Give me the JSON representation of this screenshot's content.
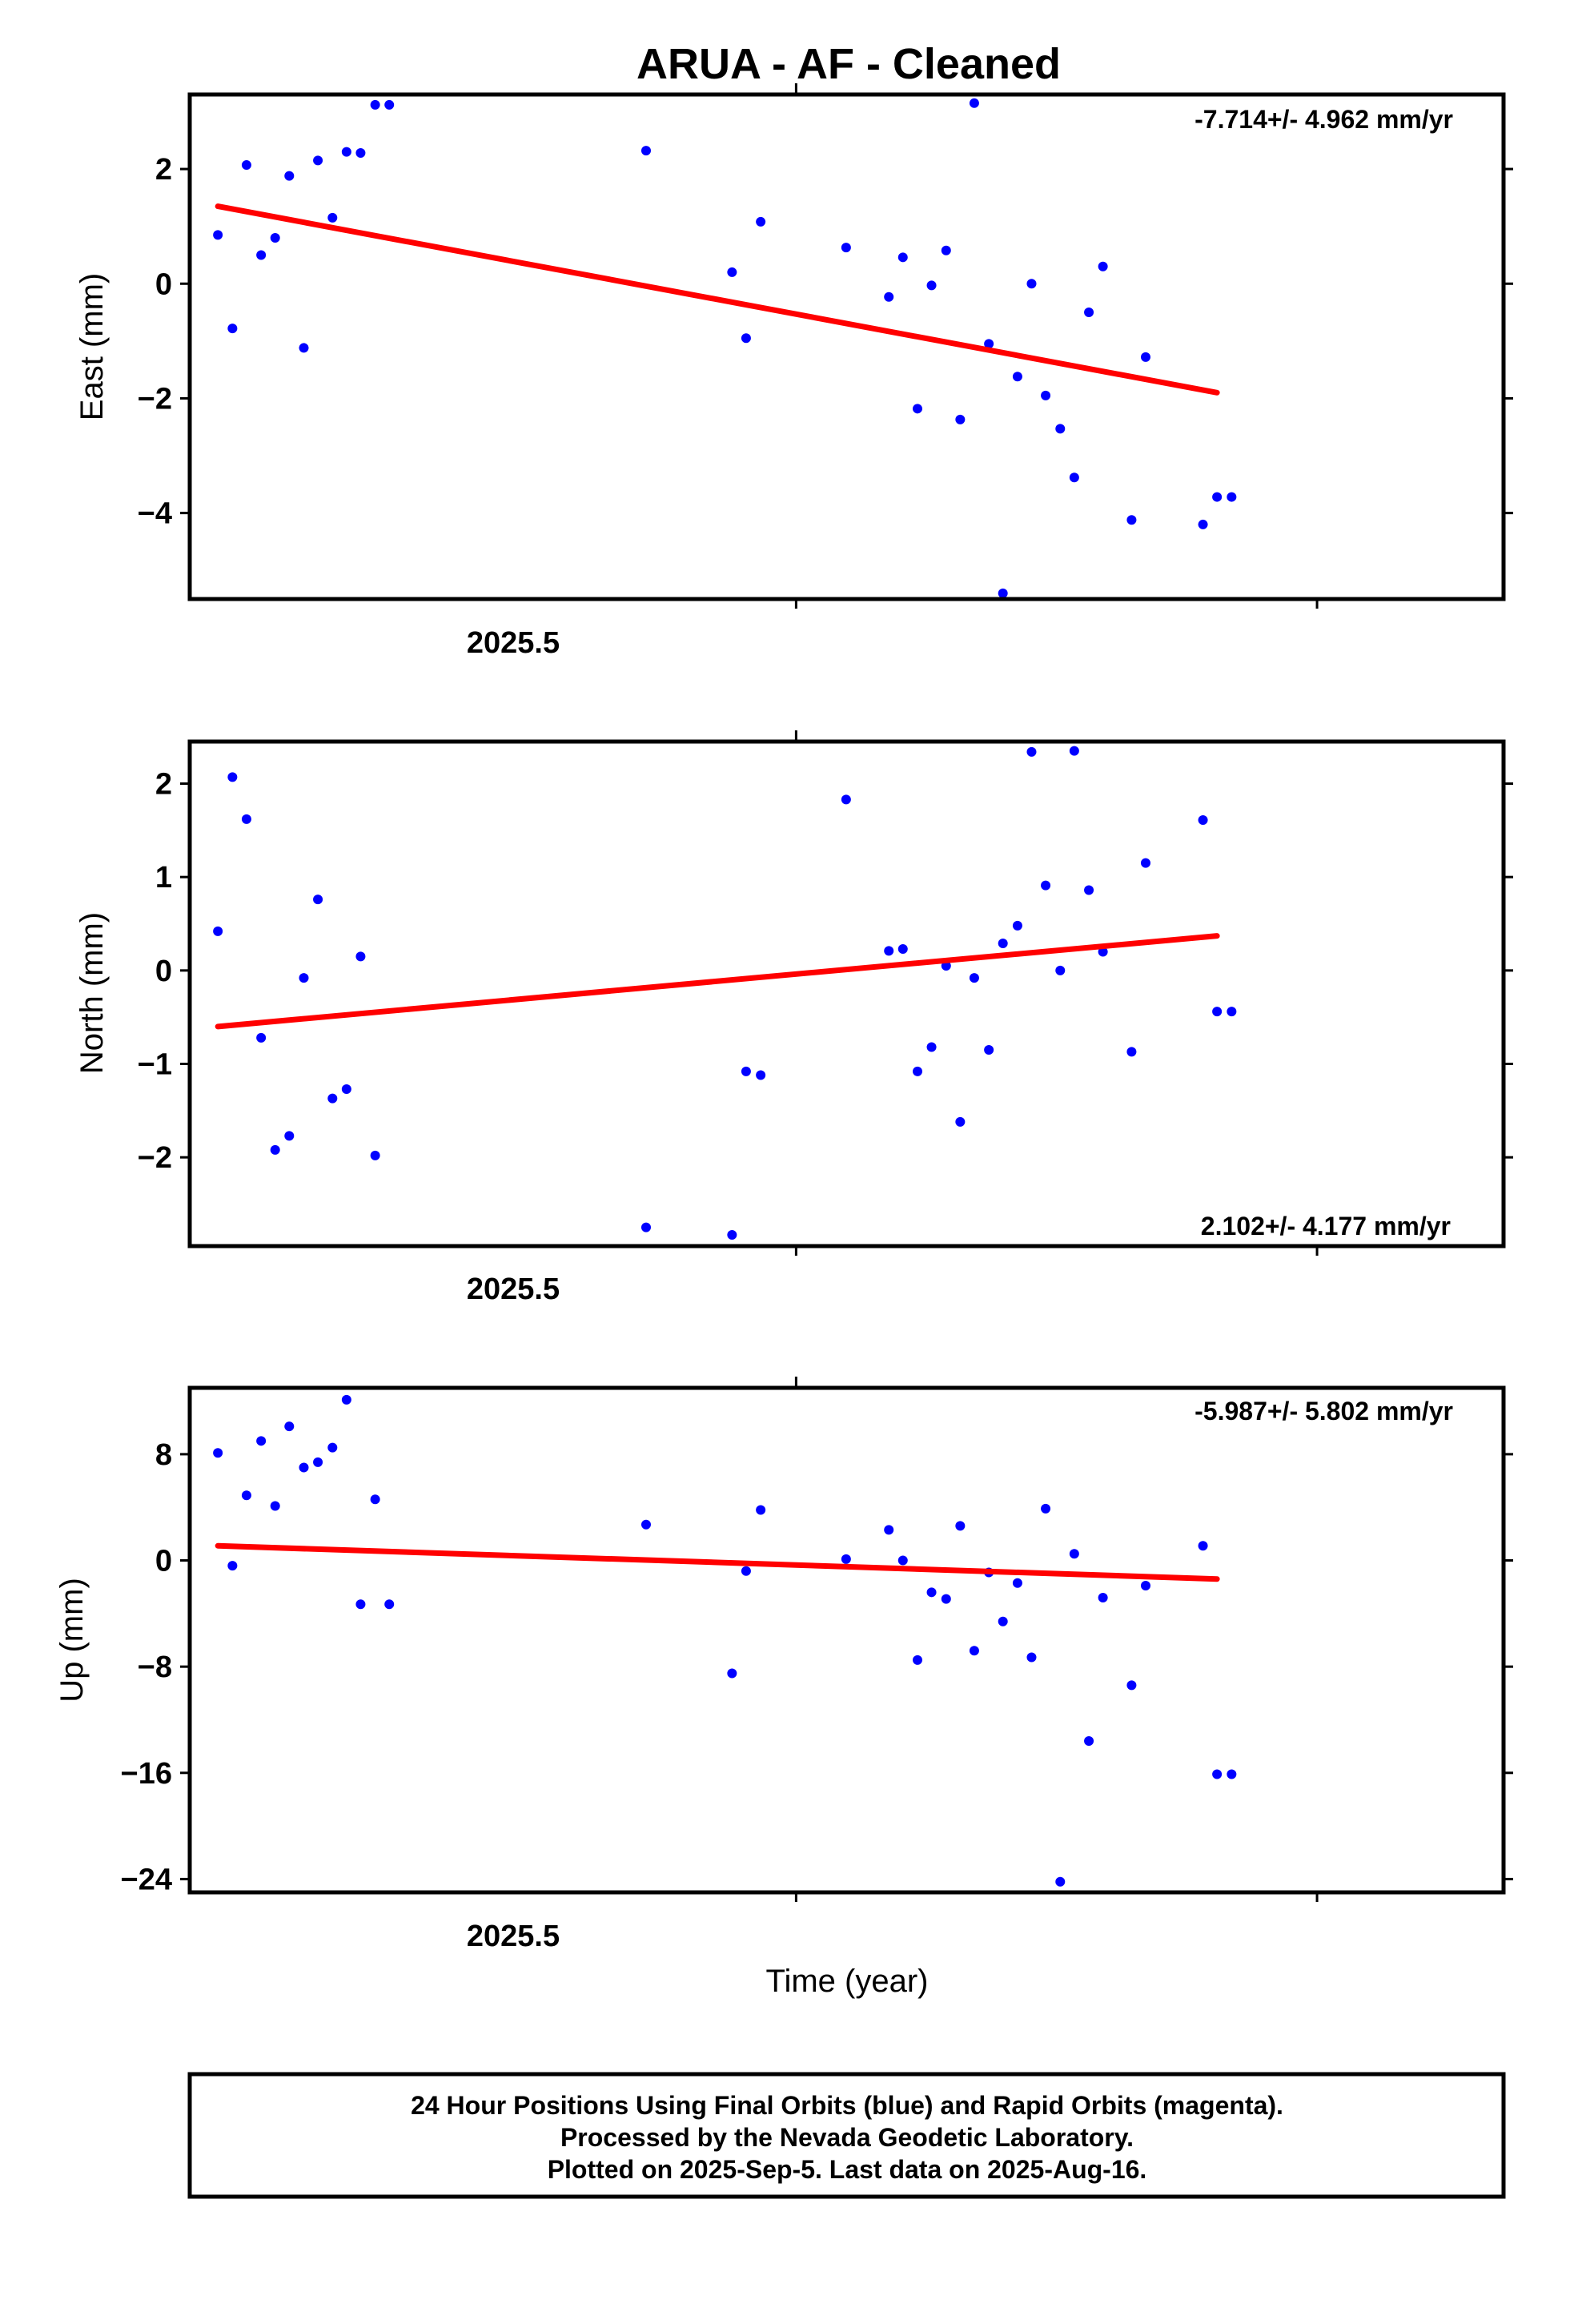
{
  "title": "ARUA  - AF - Cleaned",
  "xlabel": "Time (year)",
  "footer": {
    "line1": "24 Hour Positions Using Final Orbits (blue) and Rapid Orbits (magenta).",
    "line2": "Processed by the Nevada Geodetic Laboratory.",
    "line3": "Plotted on 2025-Sep-5. Last data on 2025-Aug-16."
  },
  "colors": {
    "points": "#0000ff",
    "fit": "#ff0000"
  },
  "chart_data": [
    {
      "type": "scatter",
      "ylabel": "East (mm)",
      "rate_label": "-7.714+/- 4.962 mm/yr",
      "rate_position": "top-right",
      "xlim": [
        2025.3836,
        2025.6358
      ],
      "ylim": [
        -5.5,
        3.3
      ],
      "yticks": [
        2,
        0,
        -2,
        -4
      ],
      "ytick_labels": [
        "2",
        "0",
        "−2",
        "−4"
      ],
      "xtick_label": "2025.5",
      "x": [
        2025.389,
        2025.3918,
        2025.3945,
        2025.3973,
        2025.4,
        2025.4027,
        2025.4055,
        2025.4082,
        2025.411,
        2025.4137,
        2025.4164,
        2025.4192,
        2025.4219,
        2025.4712,
        2025.4877,
        2025.4904,
        2025.4932,
        2025.5096,
        2025.5178,
        2025.5205,
        2025.5233,
        2025.526,
        2025.5288,
        2025.5315,
        2025.5342,
        2025.537,
        2025.5397,
        2025.5425,
        2025.5452,
        2025.5479,
        2025.5507,
        2025.5534,
        2025.5562,
        2025.5589,
        2025.5644,
        2025.5671,
        2025.5781,
        2025.5808,
        2025.5836
      ],
      "y": [
        0.85,
        -0.78,
        2.07,
        0.5,
        0.8,
        1.88,
        -1.12,
        2.15,
        1.15,
        2.3,
        2.28,
        3.12,
        3.12,
        2.32,
        0.2,
        -0.95,
        1.08,
        0.63,
        -0.23,
        0.46,
        -2.18,
        -0.03,
        0.58,
        -2.37,
        3.15,
        -1.05,
        -5.4,
        -1.62,
        0.0,
        -1.95,
        -2.53,
        -3.38,
        -0.5,
        0.3,
        -4.12,
        -1.28,
        -4.2,
        -3.72,
        -3.72
      ],
      "fit": {
        "x": [
          2025.389,
          2025.5808
        ],
        "y": [
          1.35,
          -1.9
        ]
      }
    },
    {
      "type": "scatter",
      "ylabel": "North (mm)",
      "rate_label": "2.102+/- 4.177 mm/yr",
      "rate_position": "bottom-right",
      "xlim": [
        2025.3836,
        2025.6358
      ],
      "ylim": [
        -2.95,
        2.45
      ],
      "yticks": [
        2,
        1,
        0,
        -1,
        -2
      ],
      "ytick_labels": [
        "2",
        "1",
        "0",
        "−1",
        "−2"
      ],
      "xtick_label": "2025.5",
      "x": [
        2025.389,
        2025.3918,
        2025.3945,
        2025.3973,
        2025.4,
        2025.4027,
        2025.4055,
        2025.4082,
        2025.411,
        2025.4137,
        2025.4164,
        2025.4192,
        2025.4712,
        2025.4877,
        2025.4904,
        2025.4932,
        2025.5096,
        2025.5178,
        2025.5205,
        2025.5233,
        2025.526,
        2025.5288,
        2025.5315,
        2025.5342,
        2025.537,
        2025.5397,
        2025.5425,
        2025.5452,
        2025.5479,
        2025.5507,
        2025.5534,
        2025.5562,
        2025.5589,
        2025.5644,
        2025.5671,
        2025.5781,
        2025.5808,
        2025.5836
      ],
      "y": [
        0.42,
        2.07,
        1.62,
        -0.72,
        -1.92,
        -1.77,
        -0.08,
        0.76,
        -1.37,
        -1.27,
        0.15,
        -1.98,
        -2.75,
        -2.83,
        -1.08,
        -1.12,
        1.83,
        0.21,
        0.23,
        -1.08,
        -0.82,
        0.05,
        -1.62,
        -0.08,
        -0.85,
        0.29,
        0.48,
        2.34,
        0.91,
        0.0,
        2.35,
        0.86,
        0.2,
        -0.87,
        1.15,
        1.61,
        -0.44,
        -0.44
      ],
      "fit": {
        "x": [
          2025.389,
          2025.5808
        ],
        "y": [
          -0.6,
          0.37
        ]
      }
    },
    {
      "type": "scatter",
      "ylabel": "Up (mm)",
      "rate_label": "-5.987+/- 5.802 mm/yr",
      "rate_position": "top-right",
      "xlim": [
        2025.3836,
        2025.6358
      ],
      "ylim": [
        -25,
        13
      ],
      "yticks": [
        8,
        0,
        -8,
        -16,
        -24
      ],
      "ytick_labels": [
        "8",
        "0",
        "−8",
        "−16",
        "−24"
      ],
      "xtick_label": "2025.5",
      "x": [
        2025.389,
        2025.3918,
        2025.3945,
        2025.3973,
        2025.4,
        2025.4027,
        2025.4055,
        2025.4082,
        2025.411,
        2025.4137,
        2025.4164,
        2025.4192,
        2025.4219,
        2025.4712,
        2025.4877,
        2025.4904,
        2025.4932,
        2025.5096,
        2025.5178,
        2025.5205,
        2025.5233,
        2025.526,
        2025.5288,
        2025.5315,
        2025.5342,
        2025.537,
        2025.5397,
        2025.5425,
        2025.5452,
        2025.5479,
        2025.5507,
        2025.5534,
        2025.5562,
        2025.5589,
        2025.5644,
        2025.5671,
        2025.5781,
        2025.5808,
        2025.5836
      ],
      "y": [
        8.1,
        -0.4,
        4.9,
        9.0,
        4.1,
        10.1,
        7.0,
        7.4,
        8.5,
        12.1,
        -3.3,
        4.6,
        -3.3,
        2.7,
        -8.5,
        -0.8,
        3.8,
        0.1,
        2.3,
        0.0,
        -7.5,
        -2.4,
        -2.9,
        2.6,
        -6.8,
        -0.9,
        -4.6,
        -1.7,
        -7.3,
        3.9,
        -24.2,
        0.5,
        -13.6,
        -2.8,
        -9.4,
        -1.9,
        1.1,
        -16.1,
        -16.1
      ],
      "fit": {
        "x": [
          2025.389,
          2025.5808
        ],
        "y": [
          1.1,
          -1.4
        ]
      }
    }
  ]
}
